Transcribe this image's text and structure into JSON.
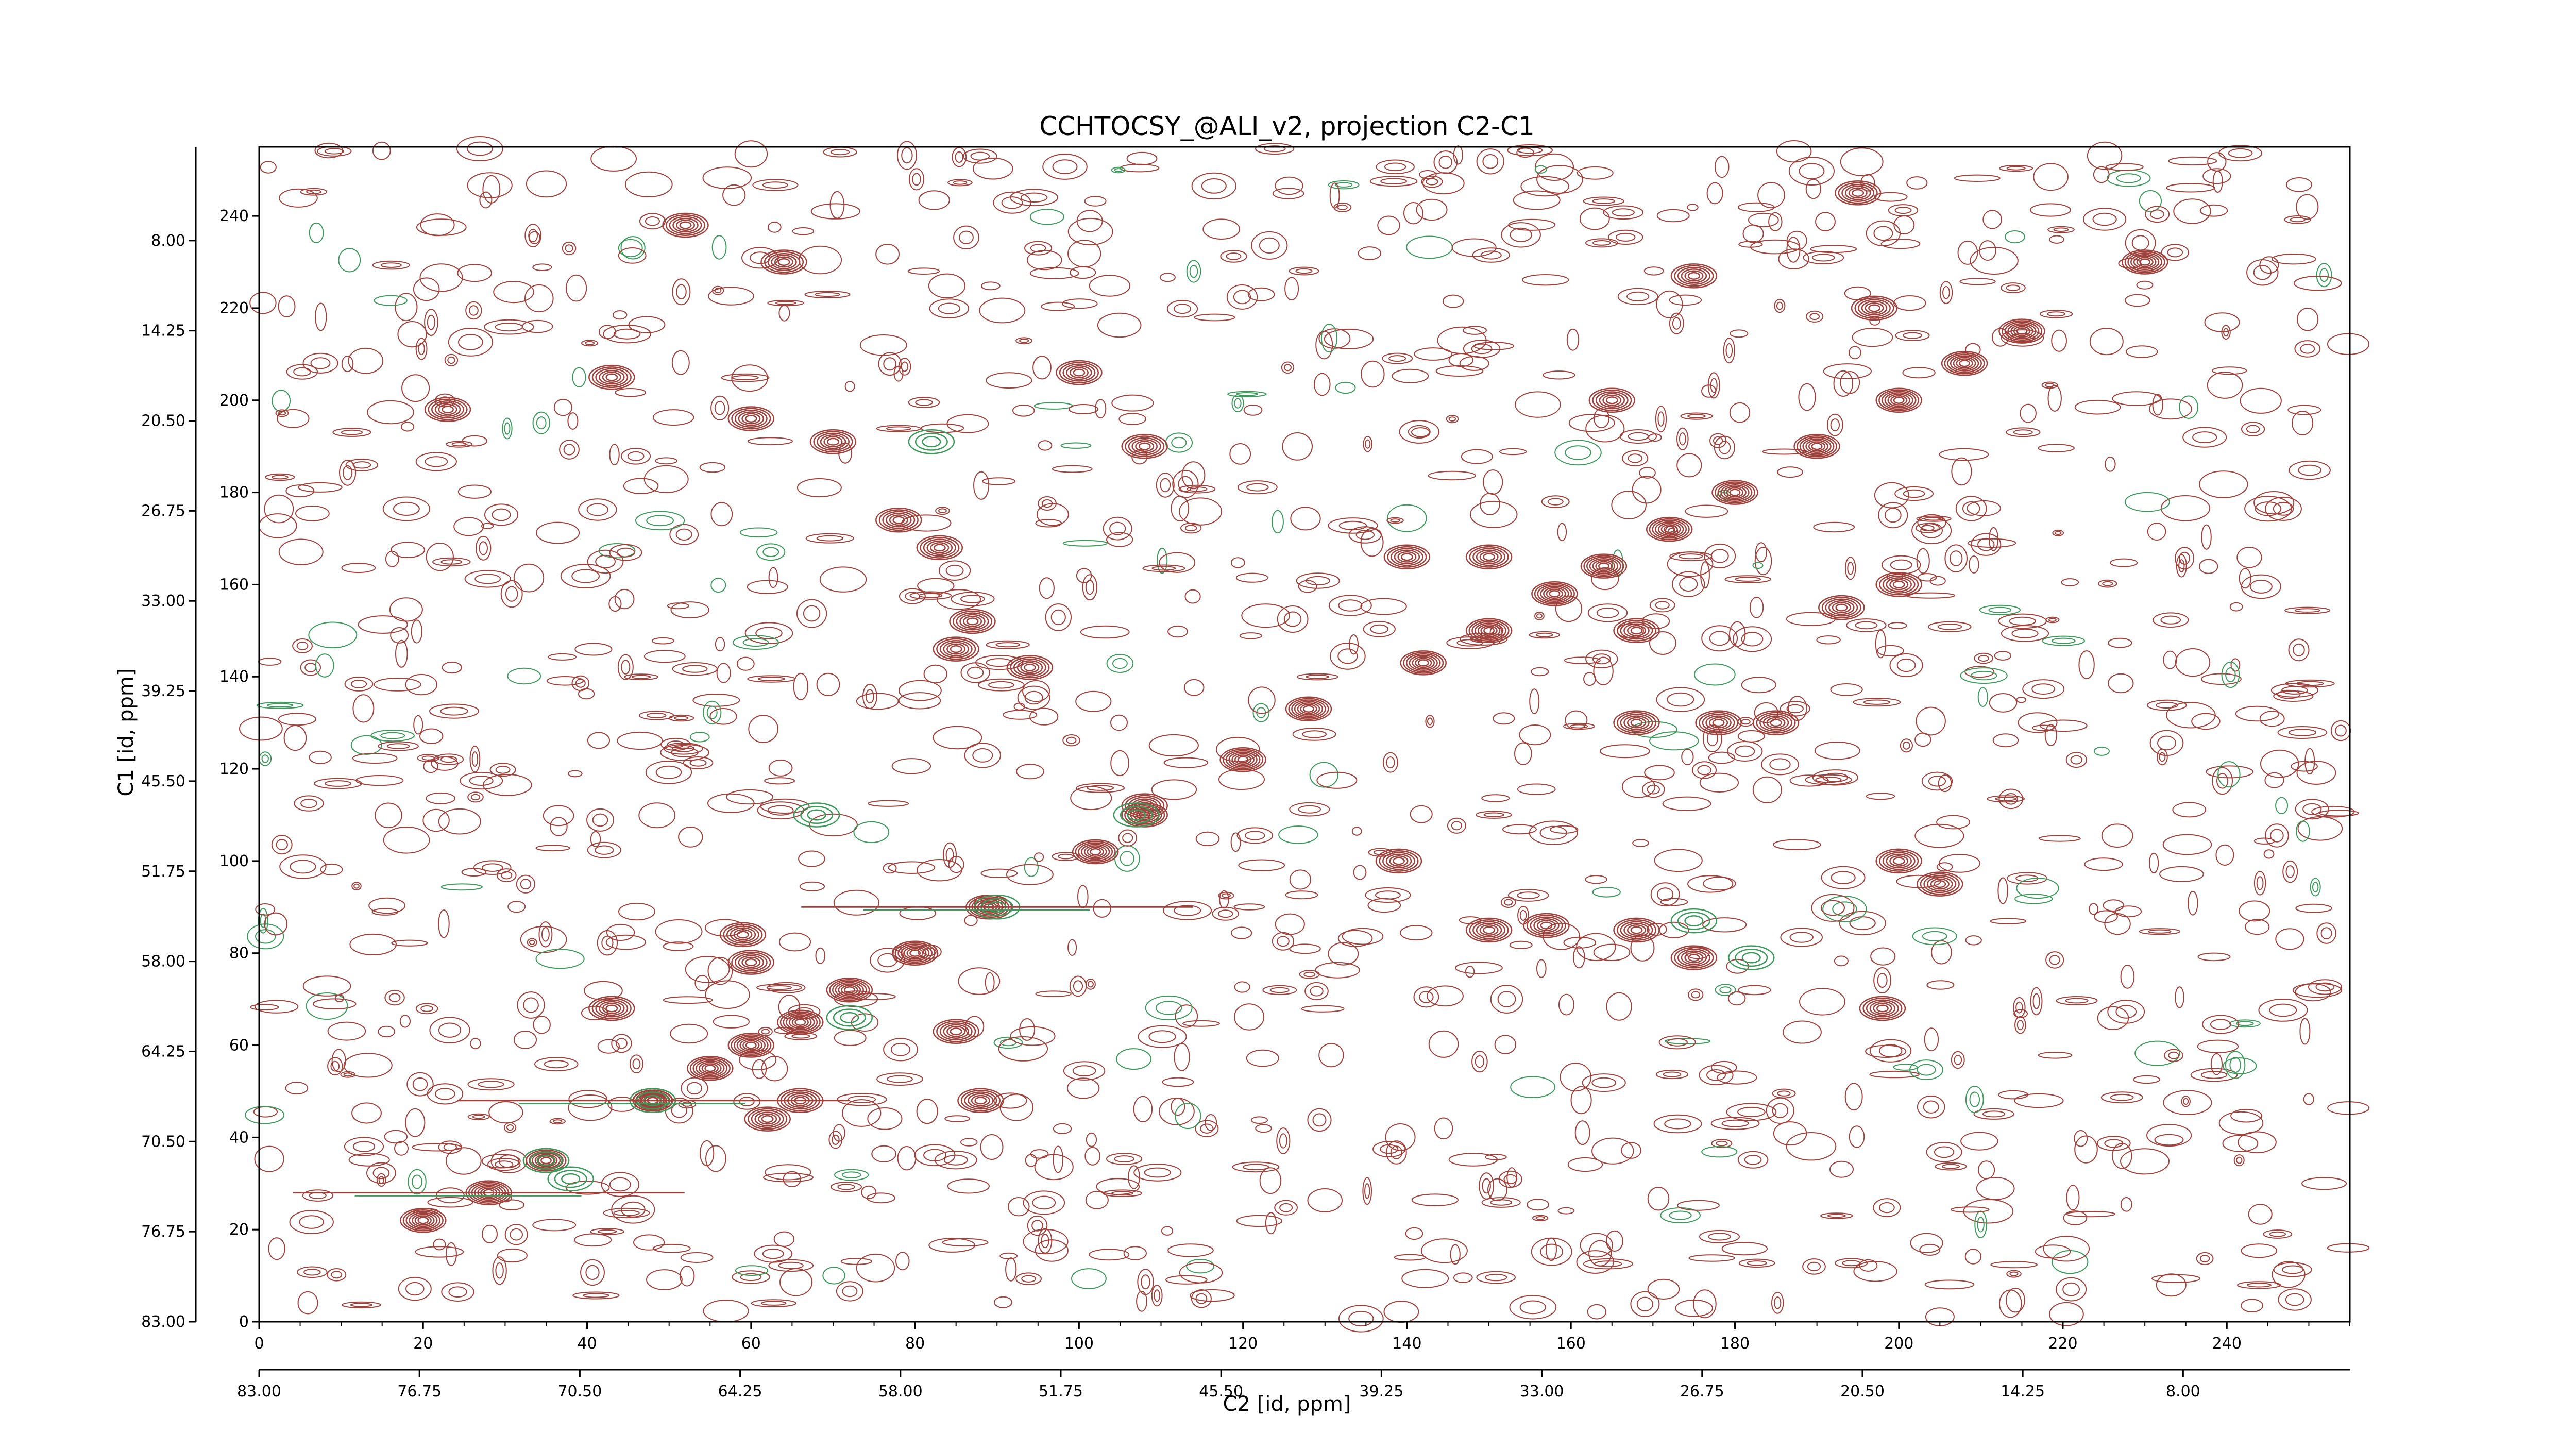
{
  "chart_data": {
    "type": "contour",
    "title": "CCHTOCSY_@ALI_v2, projection C2-C1",
    "xlabel": "C2 [id, ppm]",
    "ylabel": "C1 [id, ppm]",
    "x_index_range": [
      0,
      255
    ],
    "y_index_range": [
      0,
      255
    ],
    "ppm_range": [
      83.0,
      1.5
    ],
    "x_index_ticks": [
      "0",
      "20",
      "40",
      "60",
      "80",
      "100",
      "120",
      "140",
      "160",
      "180",
      "200",
      "220",
      "240"
    ],
    "y_index_ticks": [
      "0",
      "20",
      "40",
      "60",
      "80",
      "100",
      "120",
      "140",
      "160",
      "180",
      "200",
      "220",
      "240"
    ],
    "ppm_ticks": [
      "83.00",
      "76.75",
      "70.50",
      "64.25",
      "58.00",
      "51.75",
      "45.50",
      "39.25",
      "33.00",
      "26.75",
      "20.50",
      "14.25",
      "8.00"
    ],
    "positive_color": "#a0403a",
    "negative_color": "#3a9a5a",
    "diagonal_peaks": [
      [
        20,
        22
      ],
      [
        28,
        28
      ],
      [
        35,
        35
      ],
      [
        48,
        48
      ],
      [
        55,
        55
      ],
      [
        60,
        60
      ],
      [
        66,
        65
      ],
      [
        72,
        72
      ],
      [
        80,
        80
      ],
      [
        89,
        90
      ],
      [
        102,
        102
      ],
      [
        108,
        110
      ],
      [
        120,
        122
      ],
      [
        128,
        133
      ],
      [
        142,
        143
      ],
      [
        150,
        150
      ],
      [
        158,
        158
      ],
      [
        164,
        164
      ],
      [
        172,
        172
      ],
      [
        180,
        180
      ],
      [
        190,
        190
      ],
      [
        200,
        200
      ],
      [
        208,
        208
      ],
      [
        215,
        215
      ],
      [
        230,
        230
      ]
    ],
    "cross_peaks": [
      [
        48,
        48
      ],
      [
        66,
        48
      ],
      [
        88,
        48
      ],
      [
        62,
        44
      ],
      [
        85,
        63
      ],
      [
        60,
        78
      ],
      [
        59,
        84
      ],
      [
        43,
        68
      ],
      [
        78,
        174
      ],
      [
        83,
        168
      ],
      [
        87,
        152
      ],
      [
        85,
        146
      ],
      [
        94,
        142
      ],
      [
        100,
        206
      ],
      [
        108,
        190
      ],
      [
        108,
        112
      ],
      [
        139,
        100
      ],
      [
        150,
        85
      ],
      [
        157,
        86
      ],
      [
        168,
        85
      ],
      [
        175,
        79
      ],
      [
        200,
        100
      ],
      [
        205,
        95
      ],
      [
        198,
        68
      ],
      [
        140,
        166
      ],
      [
        150,
        166
      ],
      [
        168,
        150
      ],
      [
        168,
        130
      ],
      [
        178,
        130
      ],
      [
        185,
        130
      ],
      [
        165,
        200
      ],
      [
        175,
        227
      ],
      [
        193,
        155
      ],
      [
        200,
        160
      ],
      [
        197,
        220
      ],
      [
        195,
        245
      ],
      [
        60,
        196
      ],
      [
        52,
        238
      ],
      [
        70,
        191
      ],
      [
        64,
        230
      ],
      [
        43,
        205
      ],
      [
        23,
        198
      ]
    ],
    "negative_peaks": [
      [
        48,
        48
      ],
      [
        90,
        90
      ],
      [
        107,
        110
      ],
      [
        175,
        87
      ],
      [
        182,
        79
      ],
      [
        38,
        31
      ],
      [
        35,
        35
      ],
      [
        82,
        191
      ],
      [
        68,
        110
      ],
      [
        72,
        66
      ]
    ]
  }
}
